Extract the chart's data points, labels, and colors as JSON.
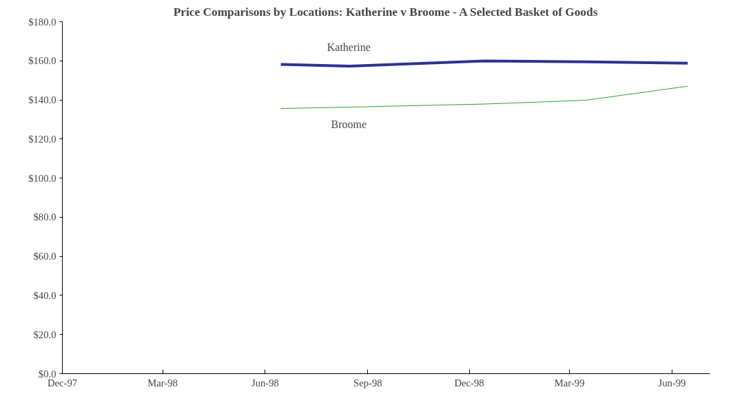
{
  "chart_data": {
    "type": "line",
    "title": "Price Comparisons by Locations: Katherine v Broome - A Selected Basket of Goods",
    "x": [
      "1998-06-15",
      "1998-08-15",
      "1998-12-15",
      "1999-03-15",
      "1999-06-15"
    ],
    "series": [
      {
        "name": "Katherine",
        "color": "#2e3192",
        "values": [
          158.2,
          157.3,
          159.9,
          159.5,
          158.8
        ]
      },
      {
        "name": "Broome",
        "color": "#2ca02c",
        "values": [
          135.6,
          136.3,
          137.9,
          139.8,
          147.0
        ]
      }
    ],
    "xlim": [
      "1997-12-01",
      "1999-07-05"
    ],
    "xticks": [
      {
        "value": "1997-12-01",
        "label": "Dec-97"
      },
      {
        "value": "1998-03-01",
        "label": "Mar-98"
      },
      {
        "value": "1998-06-01",
        "label": "Jun-98"
      },
      {
        "value": "1998-09-01",
        "label": "Sep-98"
      },
      {
        "value": "1998-12-01",
        "label": "Dec-98"
      },
      {
        "value": "1999-03-01",
        "label": "Mar-99"
      },
      {
        "value": "1999-06-01",
        "label": "Jun-99"
      }
    ],
    "ylim": [
      0,
      180
    ],
    "yticks": [
      {
        "value": 0,
        "label": "$0.0"
      },
      {
        "value": 20,
        "label": "$20.0"
      },
      {
        "value": 40,
        "label": "$40.0"
      },
      {
        "value": 60,
        "label": "$60.0"
      },
      {
        "value": 80,
        "label": "$80.0"
      },
      {
        "value": 100,
        "label": "$100.0"
      },
      {
        "value": 120,
        "label": "$120.0"
      },
      {
        "value": 140,
        "label": "$140.0"
      },
      {
        "value": 160,
        "label": "$160.0"
      },
      {
        "value": 180,
        "label": "$180.0"
      }
    ],
    "grid": false,
    "legend": false,
    "marker": "none",
    "line_style": "solid"
  }
}
